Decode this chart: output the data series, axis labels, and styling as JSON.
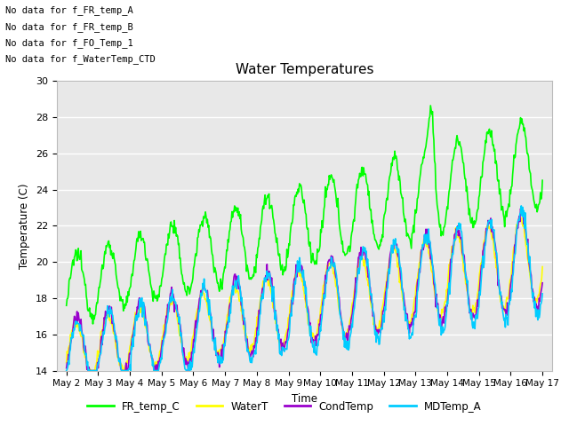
{
  "title": "Water Temperatures",
  "xlabel": "Time",
  "ylabel": "Temperature (C)",
  "ylim": [
    14,
    30
  ],
  "xtick_labels": [
    "May 2",
    "May 3",
    "May 4",
    "May 5",
    "May 6",
    "May 7",
    "May 8",
    "May 9",
    "May 10",
    "May 11",
    "May 12",
    "May 13",
    "May 14",
    "May 15",
    "May 16",
    "May 17"
  ],
  "xtick_positions": [
    0,
    1,
    2,
    3,
    4,
    5,
    6,
    7,
    8,
    9,
    10,
    11,
    12,
    13,
    14,
    15
  ],
  "ytick_labels": [
    "14",
    "16",
    "18",
    "20",
    "22",
    "24",
    "26",
    "28",
    "30"
  ],
  "ytick_positions": [
    14,
    16,
    18,
    20,
    22,
    24,
    26,
    28,
    30
  ],
  "plot_bg_color": "#e8e8e8",
  "fig_bg_color": "#ffffff",
  "grid_color": "white",
  "series": {
    "FR_temp_C": {
      "color": "#00ff00",
      "linewidth": 1.2
    },
    "WaterT": {
      "color": "#ffff00",
      "linewidth": 1.2
    },
    "CondTemp": {
      "color": "#9900cc",
      "linewidth": 1.2
    },
    "MDTemp_A": {
      "color": "#00ccff",
      "linewidth": 1.2
    }
  },
  "annotations": [
    "No data for f_FR_temp_A",
    "No data for f_FR_temp_B",
    "No data for f_FO_Temp_1",
    "No data for f_WaterTemp_CTD"
  ],
  "legend_entries": [
    "FR_temp_C",
    "WaterT",
    "CondTemp",
    "MDTemp_A"
  ],
  "legend_colors": [
    "#00ff00",
    "#ffff00",
    "#9900cc",
    "#00ccff"
  ]
}
